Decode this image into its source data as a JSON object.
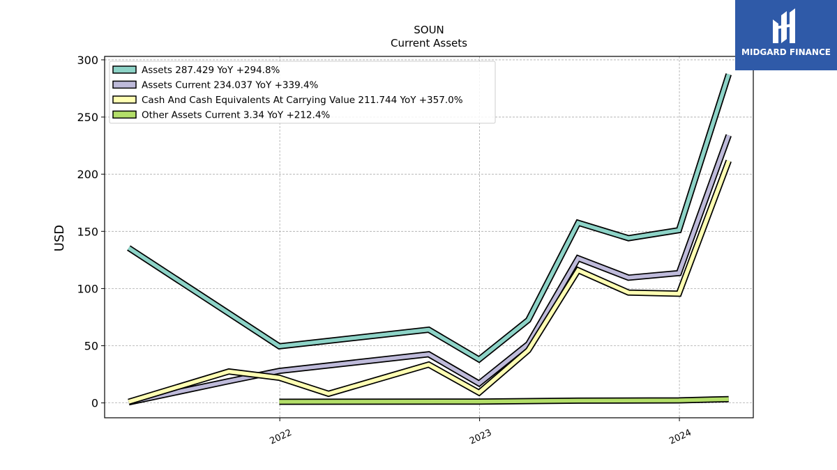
{
  "brand": {
    "name": "MIDGARD FINANCE",
    "color": "#2f5aa8"
  },
  "chart_data": {
    "type": "line",
    "title": "SOUN",
    "subtitle": "Current  Assets",
    "xlabel": "",
    "ylabel": "USD",
    "ylim": [
      -13,
      303
    ],
    "yticks": [
      0,
      50,
      100,
      150,
      200,
      250,
      300
    ],
    "xlim": [
      "2021-02-15",
      "2024-05-15"
    ],
    "xticks": [
      {
        "date": "2022-01-01",
        "label": "2022"
      },
      {
        "date": "2023-01-01",
        "label": "2023"
      },
      {
        "date": "2024-01-01",
        "label": "2024"
      }
    ],
    "grid": true,
    "legend_position": "top-left",
    "series": [
      {
        "name": "Assets  287.429 YoY +294.8%",
        "color": "#8dd3c7",
        "points": [
          [
            "2021-03-31",
            135.5
          ],
          [
            "2021-12-31",
            49.5
          ],
          [
            "2022-09-30",
            64.0
          ],
          [
            "2022-12-31",
            38.0
          ],
          [
            "2023-03-31",
            72.5
          ],
          [
            "2023-06-30",
            157.5
          ],
          [
            "2023-09-30",
            144.0
          ],
          [
            "2023-12-31",
            151.0
          ],
          [
            "2024-03-31",
            287.4
          ]
        ]
      },
      {
        "name": "Assets Current  234.037 YoY +339.4%",
        "color": "#bebada",
        "points": [
          [
            "2021-03-31",
            0.5
          ],
          [
            "2021-09-30",
            19.0
          ],
          [
            "2021-12-31",
            28.0
          ],
          [
            "2022-09-30",
            42.5
          ],
          [
            "2022-12-31",
            17.0
          ],
          [
            "2023-03-31",
            51.5
          ],
          [
            "2023-06-30",
            126.5
          ],
          [
            "2023-09-30",
            109.5
          ],
          [
            "2023-12-31",
            113.5
          ],
          [
            "2024-03-31",
            234.0
          ]
        ]
      },
      {
        "name": "Cash And Cash Equivalents At Carrying Value  211.744 YoY +357.0%",
        "color": "#ffffb3",
        "points": [
          [
            "2021-03-31",
            1.0
          ],
          [
            "2021-09-30",
            27.5
          ],
          [
            "2021-12-31",
            22.0
          ],
          [
            "2022-03-31",
            8.0
          ],
          [
            "2022-09-30",
            33.5
          ],
          [
            "2022-12-31",
            9.0
          ],
          [
            "2023-03-31",
            46.0
          ],
          [
            "2023-06-30",
            116.0
          ],
          [
            "2023-09-30",
            96.5
          ],
          [
            "2023-12-31",
            95.5
          ],
          [
            "2024-03-31",
            211.7
          ]
        ]
      },
      {
        "name": "Other Assets Current  3.34 YoY +212.4%",
        "color": "#b3de69",
        "points": [
          [
            "2021-12-31",
            1.0
          ],
          [
            "2022-12-31",
            1.2
          ],
          [
            "2023-06-30",
            2.0
          ],
          [
            "2023-12-31",
            2.2
          ],
          [
            "2024-03-31",
            3.3
          ]
        ]
      }
    ]
  }
}
